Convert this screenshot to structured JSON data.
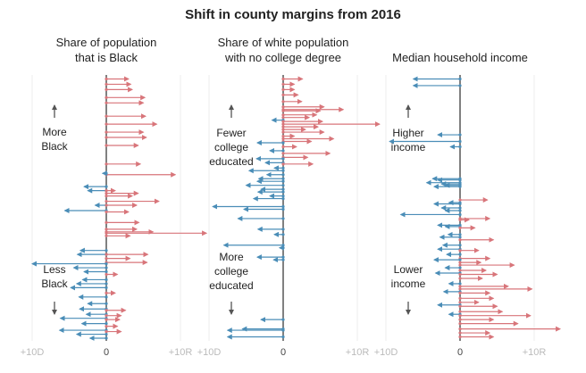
{
  "title": "Shift in county margins from 2016",
  "colors": {
    "democratic_shift": "#4a8db7",
    "republican_shift": "#d8757a",
    "zero_line": "#000000",
    "tick_text": "#bbbbbb",
    "gridline": "#eeeeee",
    "annotation_arrow": "#555555"
  },
  "chart_data": [
    {
      "type": "arrow-dot",
      "title": "Share of population\nthat is Black",
      "x_tick_labels": [
        "+10D",
        "0",
        "+10R"
      ],
      "xlim": [
        -10,
        10
      ],
      "top_annotation": "More\nBlack",
      "bottom_annotation": "Less\nBlack",
      "rows": [
        {
          "shift": 3.0,
          "rank": 0.015
        },
        {
          "shift": 3.3,
          "rank": 0.035
        },
        {
          "shift": 3.5,
          "rank": 0.055
        },
        {
          "shift": 5.2,
          "rank": 0.085
        },
        {
          "shift": 5.0,
          "rank": 0.105
        },
        {
          "shift": 5.3,
          "rank": 0.155
        },
        {
          "shift": 6.8,
          "rank": 0.185
        },
        {
          "shift": 5.0,
          "rank": 0.215
        },
        {
          "shift": 5.4,
          "rank": 0.235
        },
        {
          "shift": 4.3,
          "rank": 0.265
        },
        {
          "shift": 4.6,
          "rank": 0.335
        },
        {
          "shift": 9.3,
          "rank": 0.375
        },
        {
          "shift": -0.5,
          "rank": 0.37
        },
        {
          "shift": -3.0,
          "rank": 0.42
        },
        {
          "shift": -2.5,
          "rank": 0.435
        },
        {
          "shift": 1.2,
          "rank": 0.435
        },
        {
          "shift": 4.3,
          "rank": 0.445
        },
        {
          "shift": 3.5,
          "rank": 0.455
        },
        {
          "shift": 7.1,
          "rank": 0.475
        },
        {
          "shift": -1.5,
          "rank": 0.49
        },
        {
          "shift": 4.1,
          "rank": 0.49
        },
        {
          "shift": -5.6,
          "rank": 0.51
        },
        {
          "shift": 3.0,
          "rank": 0.515
        },
        {
          "shift": 4.4,
          "rank": 0.555
        },
        {
          "shift": 4.1,
          "rank": 0.58
        },
        {
          "shift": 13.5,
          "rank": 0.595
        },
        {
          "shift": 6.3,
          "rank": 0.59
        },
        {
          "shift": 3.2,
          "rank": 0.605
        },
        {
          "shift": -3.5,
          "rank": 0.66
        },
        {
          "shift": -3.9,
          "rank": 0.675
        },
        {
          "shift": 5.6,
          "rank": 0.675
        },
        {
          "shift": 3.2,
          "rank": 0.69
        },
        {
          "shift": 5.5,
          "rank": 0.705
        },
        {
          "shift": -10.0,
          "rank": 0.71
        },
        {
          "shift": -4.4,
          "rank": 0.725
        },
        {
          "shift": -3.0,
          "rank": 0.74
        },
        {
          "shift": 1.5,
          "rank": 0.75
        },
        {
          "shift": -3.2,
          "rank": 0.77
        },
        {
          "shift": -4.0,
          "rank": 0.785
        },
        {
          "shift": -4.8,
          "rank": 0.8
        },
        {
          "shift": 1.2,
          "rank": 0.82
        },
        {
          "shift": -3.7,
          "rank": 0.835
        },
        {
          "shift": -2.5,
          "rank": 0.86
        },
        {
          "shift": -3.6,
          "rank": 0.88
        },
        {
          "shift": 2.6,
          "rank": 0.885
        },
        {
          "shift": -2.7,
          "rank": 0.9
        },
        {
          "shift": 2.0,
          "rank": 0.905
        },
        {
          "shift": -6.2,
          "rank": 0.915
        },
        {
          "shift": 1.8,
          "rank": 0.92
        },
        {
          "shift": -3.3,
          "rank": 0.935
        },
        {
          "shift": 1.5,
          "rank": 0.945
        },
        {
          "shift": -6.3,
          "rank": 0.96
        },
        {
          "shift": 2.0,
          "rank": 0.965
        },
        {
          "shift": -4.0,
          "rank": 0.975
        },
        {
          "shift": -2.2,
          "rank": 0.99
        }
      ]
    },
    {
      "type": "arrow-dot",
      "title": "Share of white population\nwith no college degree",
      "x_tick_labels": [
        "+10D",
        "0",
        "+10R"
      ],
      "xlim": [
        -10,
        10
      ],
      "top_annotation": "Fewer\ncollege\neducated",
      "bottom_annotation": "More\ncollege\neducated",
      "rows": [
        {
          "shift": 2.6,
          "rank": 0.015
        },
        {
          "shift": 1.5,
          "rank": 0.035
        },
        {
          "shift": 1.5,
          "rank": 0.055
        },
        {
          "shift": 2.0,
          "rank": 0.075
        },
        {
          "shift": 2.5,
          "rank": 0.1
        },
        {
          "shift": 5.5,
          "rank": 0.12
        },
        {
          "shift": 8.1,
          "rank": 0.13
        },
        {
          "shift": 5.0,
          "rank": 0.135
        },
        {
          "shift": 4.5,
          "rank": 0.15
        },
        {
          "shift": 3.5,
          "rank": 0.16
        },
        {
          "shift": -1.5,
          "rank": 0.17
        },
        {
          "shift": 5.3,
          "rank": 0.175
        },
        {
          "shift": 13.0,
          "rank": 0.185
        },
        {
          "shift": 4.7,
          "rank": 0.195
        },
        {
          "shift": 3.0,
          "rank": 0.205
        },
        {
          "shift": 5.5,
          "rank": 0.215
        },
        {
          "shift": 1.5,
          "rank": 0.23
        },
        {
          "shift": 6.8,
          "rank": 0.24
        },
        {
          "shift": 3.8,
          "rank": 0.25
        },
        {
          "shift": -3.5,
          "rank": 0.255
        },
        {
          "shift": 1.8,
          "rank": 0.27
        },
        {
          "shift": -1.8,
          "rank": 0.285
        },
        {
          "shift": 6.3,
          "rank": 0.295
        },
        {
          "shift": 3.3,
          "rank": 0.31
        },
        {
          "shift": -3.6,
          "rank": 0.315
        },
        {
          "shift": -2.4,
          "rank": 0.33
        },
        {
          "shift": 4.0,
          "rank": 0.335
        },
        {
          "shift": -1.2,
          "rank": 0.35
        },
        {
          "shift": -4.6,
          "rank": 0.36
        },
        {
          "shift": -2.2,
          "rank": 0.375
        },
        {
          "shift": -3.3,
          "rank": 0.39
        },
        {
          "shift": -3.5,
          "rank": 0.4
        },
        {
          "shift": -5.0,
          "rank": 0.415
        },
        {
          "shift": -3.0,
          "rank": 0.43
        },
        {
          "shift": -3.4,
          "rank": 0.44
        },
        {
          "shift": -1.8,
          "rank": 0.455
        },
        {
          "shift": -4.0,
          "rank": 0.465
        },
        {
          "shift": -9.5,
          "rank": 0.495
        },
        {
          "shift": -5.3,
          "rank": 0.505
        },
        {
          "shift": -6.1,
          "rank": 0.54
        },
        {
          "shift": -3.4,
          "rank": 0.58
        },
        {
          "shift": -1.2,
          "rank": 0.6
        },
        {
          "shift": -8.0,
          "rank": 0.64
        },
        {
          "shift": -0.5,
          "rank": 0.65
        },
        {
          "shift": -3.5,
          "rank": 0.685
        },
        {
          "shift": -1.3,
          "rank": 0.695
        },
        {
          "shift": -3.0,
          "rank": 0.92
        },
        {
          "shift": -5.5,
          "rank": 0.955
        },
        {
          "shift": -7.5,
          "rank": 0.96
        },
        {
          "shift": -7.5,
          "rank": 0.985
        }
      ]
    },
    {
      "type": "arrow-dot",
      "title": "Median household income",
      "x_tick_labels": [
        "+10D",
        "0",
        "+10R"
      ],
      "xlim": [
        -10,
        10
      ],
      "top_annotation": "Higher\nincome",
      "bottom_annotation": "Lower\nincome",
      "rows": [
        {
          "shift": -6.3,
          "rank": 0.015
        },
        {
          "shift": -6.3,
          "rank": 0.04
        },
        {
          "shift": -3.0,
          "rank": 0.225
        },
        {
          "shift": -9.5,
          "rank": 0.25
        },
        {
          "shift": -1.3,
          "rank": 0.27
        },
        {
          "shift": -3.7,
          "rank": 0.39
        },
        {
          "shift": -3.0,
          "rank": 0.395
        },
        {
          "shift": -4.5,
          "rank": 0.405
        },
        {
          "shift": -2.5,
          "rank": 0.41
        },
        {
          "shift": -2.0,
          "rank": 0.415
        },
        {
          "shift": -3.5,
          "rank": 0.42
        },
        {
          "shift": 3.7,
          "rank": 0.47
        },
        {
          "shift": -1.5,
          "rank": 0.48
        },
        {
          "shift": -3.5,
          "rank": 0.485
        },
        {
          "shift": -2.5,
          "rank": 0.5
        },
        {
          "shift": -2.0,
          "rank": 0.51
        },
        {
          "shift": -8.0,
          "rank": 0.525
        },
        {
          "shift": 4.0,
          "rank": 0.54
        },
        {
          "shift": 1.2,
          "rank": 0.545
        },
        {
          "shift": -3.0,
          "rank": 0.565
        },
        {
          "shift": -2.0,
          "rank": 0.57
        },
        {
          "shift": 2.0,
          "rank": 0.575
        },
        {
          "shift": -1.6,
          "rank": 0.6
        },
        {
          "shift": -2.7,
          "rank": 0.61
        },
        {
          "shift": 4.5,
          "rank": 0.62
        },
        {
          "shift": -2.3,
          "rank": 0.64
        },
        {
          "shift": -3.0,
          "rank": 0.655
        },
        {
          "shift": 2.5,
          "rank": 0.66
        },
        {
          "shift": -1.8,
          "rank": 0.675
        },
        {
          "shift": 4.0,
          "rank": 0.69
        },
        {
          "shift": -3.5,
          "rank": 0.695
        },
        {
          "shift": 2.8,
          "rank": 0.705
        },
        {
          "shift": 7.3,
          "rank": 0.715
        },
        {
          "shift": -2.0,
          "rank": 0.725
        },
        {
          "shift": 3.5,
          "rank": 0.735
        },
        {
          "shift": -3.3,
          "rank": 0.745
        },
        {
          "shift": 5.0,
          "rank": 0.75
        },
        {
          "shift": 3.0,
          "rank": 0.765
        },
        {
          "shift": -1.5,
          "rank": 0.785
        },
        {
          "shift": 6.5,
          "rank": 0.795
        },
        {
          "shift": 9.7,
          "rank": 0.805
        },
        {
          "shift": -2.2,
          "rank": 0.815
        },
        {
          "shift": 4.0,
          "rank": 0.82
        },
        {
          "shift": 4.5,
          "rank": 0.84
        },
        {
          "shift": 2.5,
          "rank": 0.855
        },
        {
          "shift": -3.0,
          "rank": 0.865
        },
        {
          "shift": 5.0,
          "rank": 0.87
        },
        {
          "shift": 5.7,
          "rank": 0.89
        },
        {
          "shift": -1.5,
          "rank": 0.9
        },
        {
          "shift": 9.5,
          "rank": 0.905
        },
        {
          "shift": 4.5,
          "rank": 0.92
        },
        {
          "shift": 7.8,
          "rank": 0.935
        },
        {
          "shift": 13.5,
          "rank": 0.955
        },
        {
          "shift": 4.0,
          "rank": 0.97
        },
        {
          "shift": 4.5,
          "rank": 0.985
        }
      ]
    }
  ]
}
